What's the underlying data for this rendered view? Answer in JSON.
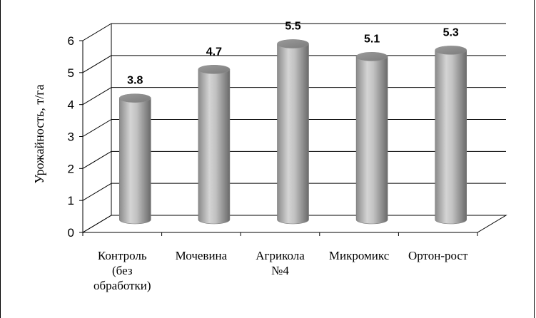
{
  "chart_data": {
    "type": "bar",
    "style": "3d-cylinder",
    "categories": [
      [
        "Контроль",
        "(без",
        "обработки)"
      ],
      [
        "Мочевина"
      ],
      [
        "Агрикола",
        "№4"
      ],
      [
        "Микромикс"
      ],
      [
        "Ортон-рост"
      ]
    ],
    "values": [
      3.8,
      4.7,
      5.5,
      5.1,
      5.3
    ],
    "value_labels": [
      "3.8",
      "4.7",
      "5.5",
      "5.1",
      "5.3"
    ],
    "title": "",
    "xlabel": "",
    "ylabel": "Урожайность, т/га",
    "ylim": [
      0,
      6
    ],
    "yticks": [
      "0",
      "1",
      "2",
      "3",
      "4",
      "5",
      "6"
    ],
    "grid": true,
    "legend": "none",
    "colors": {
      "bar_light": "#d6d6d6",
      "bar_mid": "#a8a8a8",
      "bar_dark": "#6e6e6e",
      "grid": "#000000"
    }
  }
}
